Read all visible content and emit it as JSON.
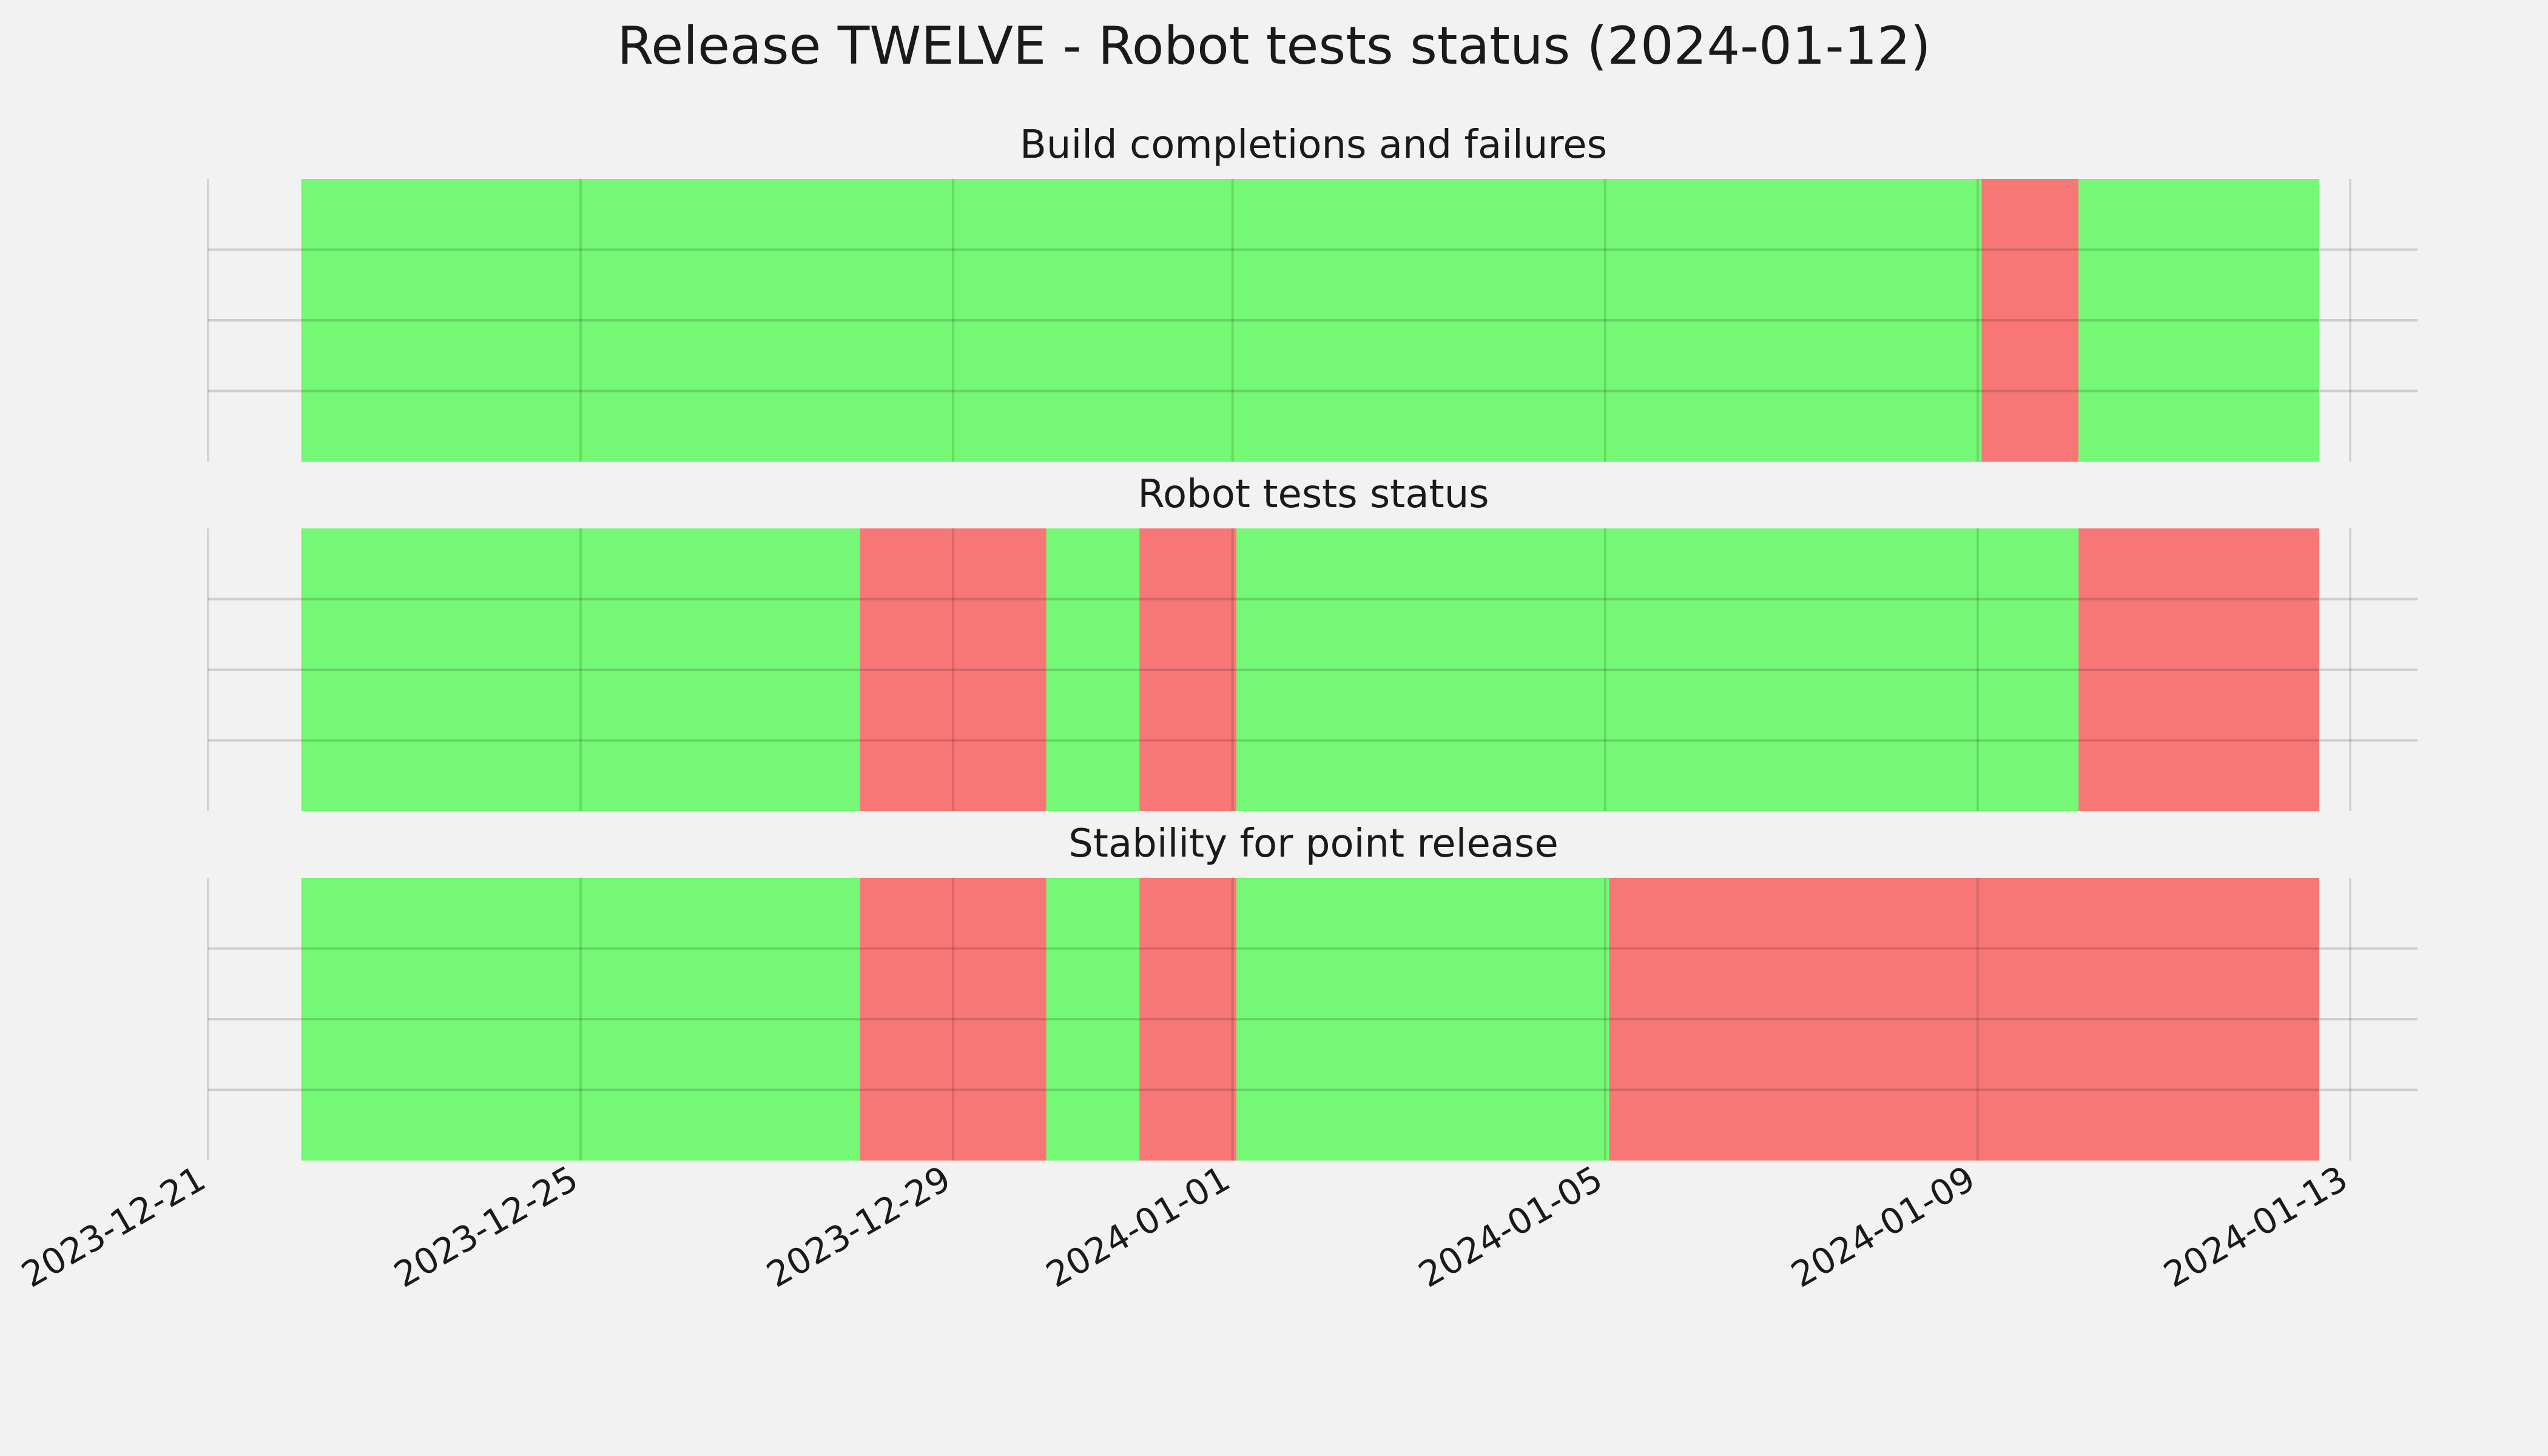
{
  "chart_data": {
    "type": "timeline",
    "title": "Release TWELVE - Robot tests status (2024-01-12)",
    "x_axis": {
      "range": [
        "2023-12-21",
        "2024-01-13"
      ],
      "ticks": [
        "2023-12-21",
        "2023-12-25",
        "2023-12-29",
        "2024-01-01",
        "2024-01-05",
        "2024-01-09",
        "2024-01-13"
      ]
    },
    "grid": true,
    "colors": {
      "pass": "#75f875",
      "fail": "#f77777",
      "background": "#f2f2f2",
      "grid": "#cccccc"
    },
    "panels": [
      {
        "title": "Build completions and failures",
        "segments": [
          {
            "start": "2023-12-22",
            "end": "2024-01-09 00:00",
            "status": "pass"
          },
          {
            "start": "2024-01-09 00:00",
            "end": "2024-01-10 00:00",
            "status": "pass"
          },
          {
            "start": "2024-01-09 00:00",
            "end": "2024-01-10 00:00",
            "status": "pass"
          }
        ]
      },
      {
        "title": "Robot tests status",
        "segments": []
      },
      {
        "title": "Stability for point release",
        "segments": []
      }
    ]
  }
}
